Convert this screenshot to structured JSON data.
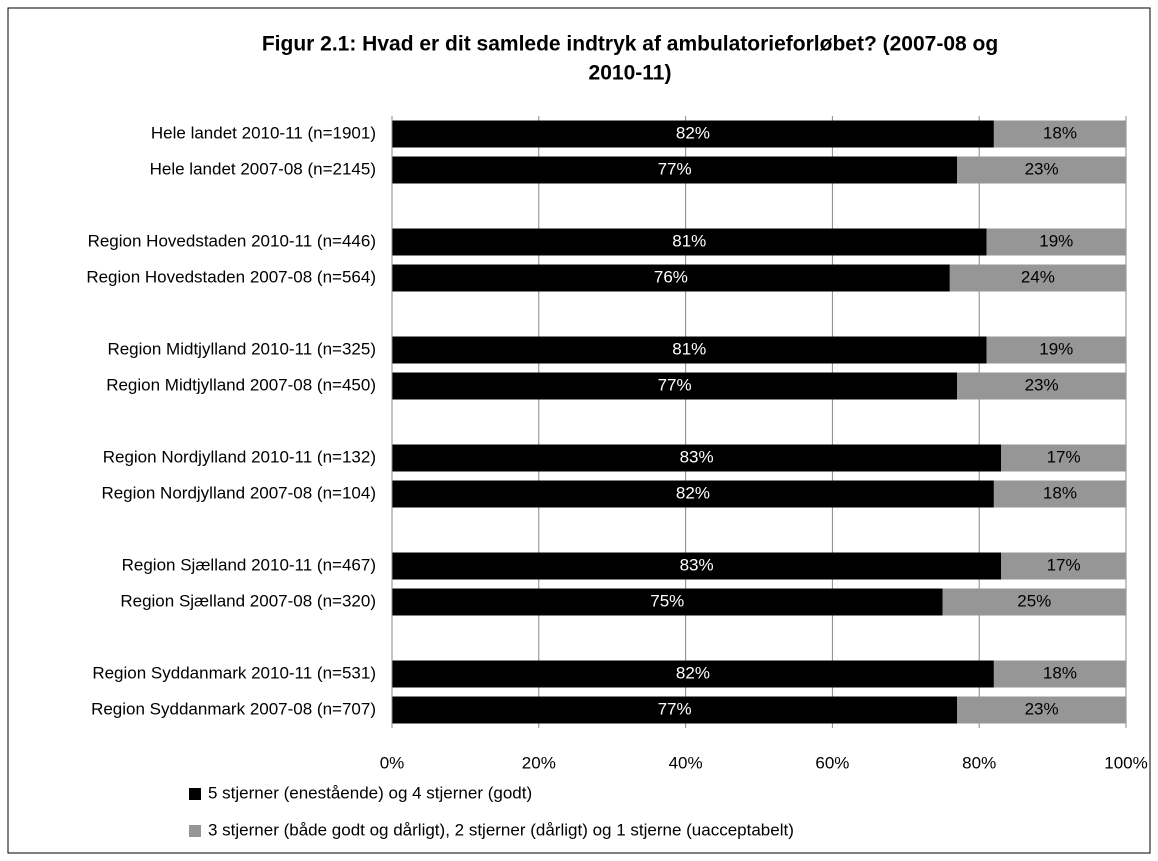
{
  "chart_data": {
    "type": "stacked-bar-horizontal",
    "title": [
      "Figur 2.1: Hvad er dit samlede indtryk af ambulatorieforløbet? (2007-08 og",
      "2010-11)"
    ],
    "categories": [
      "Hele landet 2010-11 (n=1901)",
      "Hele landet 2007-08 (n=2145)",
      null,
      "Region Hovedstaden 2010-11 (n=446)",
      "Region Hovedstaden 2007-08 (n=564)",
      null,
      "Region Midtjylland 2010-11 (n=325)",
      "Region Midtjylland 2007-08 (n=450)",
      null,
      "Region Nordjylland 2010-11 (n=132)",
      "Region Nordjylland 2007-08 (n=104)",
      null,
      "Region Sjælland 2010-11 (n=467)",
      "Region Sjælland 2007-08 (n=320)",
      null,
      "Region Syddanmark 2010-11 (n=531)",
      "Region Syddanmark 2007-08 (n=707)"
    ],
    "series": [
      {
        "name": "5 stjerner (enestående) og 4 stjerner (godt)",
        "color": "#000000",
        "values": [
          82,
          77,
          null,
          81,
          76,
          null,
          81,
          77,
          null,
          83,
          82,
          null,
          83,
          75,
          null,
          82,
          77
        ],
        "value_labels": [
          "82%",
          "77%",
          null,
          "81%",
          "76%",
          null,
          "81%",
          "77%",
          null,
          "83%",
          "82%",
          null,
          "83%",
          "75%",
          null,
          "82%",
          "77%"
        ]
      },
      {
        "name": "3 stjerner (både godt og dårligt), 2 stjerner (dårligt) og 1 stjerne (uacceptabelt)",
        "color": "#969696",
        "values": [
          18,
          23,
          null,
          19,
          24,
          null,
          19,
          23,
          null,
          17,
          18,
          null,
          17,
          25,
          null,
          18,
          23
        ],
        "value_labels": [
          "18%",
          "23%",
          null,
          "19%",
          "24%",
          null,
          "19%",
          "23%",
          null,
          "17%",
          "18%",
          null,
          "17%",
          "25%",
          null,
          "18%",
          "23%"
        ]
      }
    ],
    "xlim": [
      0,
      100
    ],
    "xticks": [
      {
        "value": 0,
        "label": "0%"
      },
      {
        "value": 20,
        "label": "20%"
      },
      {
        "value": 40,
        "label": "40%"
      },
      {
        "value": 60,
        "label": "60%"
      },
      {
        "value": 80,
        "label": "80%"
      },
      {
        "value": 100,
        "label": "100%"
      }
    ],
    "grid": true,
    "legend": "bottom"
  }
}
